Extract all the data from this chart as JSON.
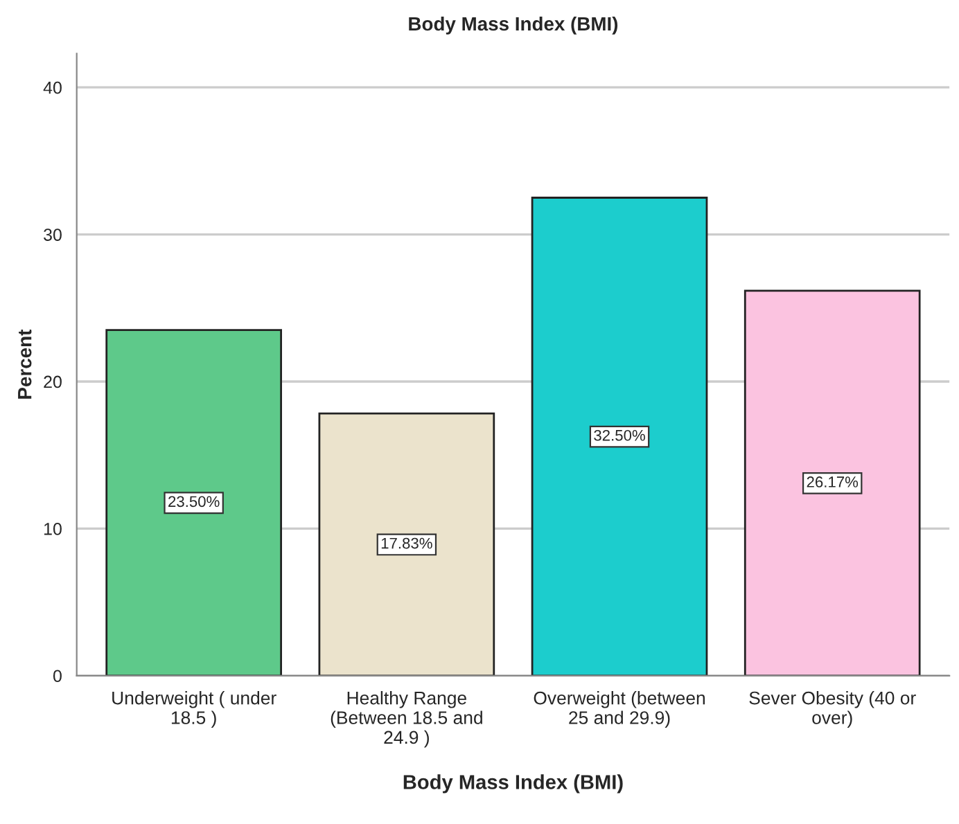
{
  "chart_data": {
    "type": "bar",
    "title": "Body Mass Index (BMI)",
    "xlabel": "Body Mass Index (BMI)",
    "ylabel": "Percent",
    "categories": [
      "Underweight ( under 18.5 )",
      "Healthy Range (Between 18.5 and 24.9 )",
      "Overweight (between 25 and 29.9)",
      "Sever Obesity (40 or over)"
    ],
    "values": [
      23.5,
      17.83,
      32.5,
      26.17
    ],
    "value_labels": [
      "23.50%",
      "17.83%",
      "32.50%",
      "26.17%"
    ],
    "colors": [
      "#5ec98a",
      "#ebe3cc",
      "#1ccdcd",
      "#fbc3e0"
    ],
    "ylim": [
      0,
      42.3
    ],
    "yticks": [
      0,
      10,
      20,
      30,
      40
    ],
    "grid": "y"
  }
}
